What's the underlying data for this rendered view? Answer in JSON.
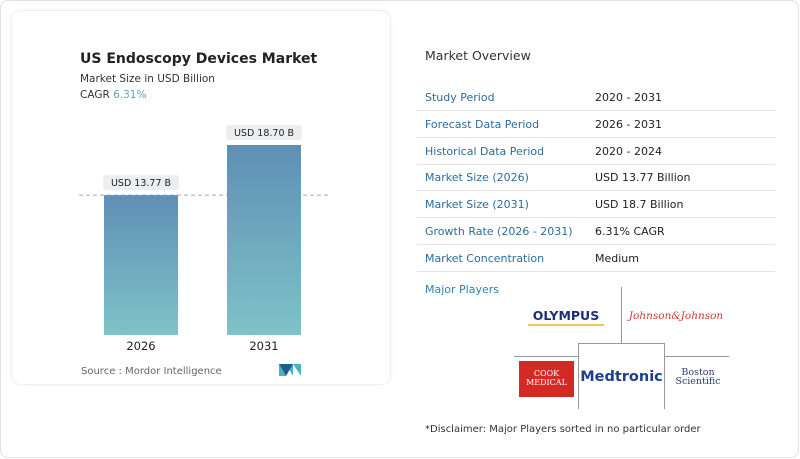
{
  "chart_data": {
    "type": "bar",
    "title": "US Endoscopy Devices Market",
    "subtitle": "Market Size in USD Billion",
    "cagr_label": "CAGR",
    "cagr_value": "6.31%",
    "categories": [
      "2026",
      "2031"
    ],
    "values": [
      13.77,
      18.7
    ],
    "data_labels": [
      "USD 13.77 B",
      "USD 18.70 B"
    ],
    "xlabel": "",
    "ylabel": "",
    "ylim": [
      0,
      18.7
    ],
    "grid": false,
    "reference_line": 13.77,
    "colors": {
      "bar_top": "#5f8fb5",
      "bar_bottom": "#7ec3c8"
    },
    "source": "Source :  Mordor Intelligence"
  },
  "overview": {
    "title": "Market Overview",
    "rows": [
      {
        "label": "Study Period",
        "value": "2020 - 2031"
      },
      {
        "label": "Forecast Data Period",
        "value": "2026 - 2031"
      },
      {
        "label": "Historical Data Period",
        "value": "2020 - 2024"
      },
      {
        "label": "Market Size (2026)",
        "value": "USD 13.77 Billion"
      },
      {
        "label": "Market Size (2031)",
        "value": "USD 18.7 Billion"
      },
      {
        "label": "Growth Rate (2026 - 2031)",
        "value": "6.31% CAGR"
      },
      {
        "label": "Market Concentration",
        "value": "Medium"
      }
    ],
    "major_players_title": "Major Players",
    "players": [
      "OLYMPUS",
      "Johnson&Johnson",
      "COOK MEDICAL",
      "Medtronic",
      "Boston Scientific"
    ],
    "disclaimer": "*Disclaimer: Major Players sorted in no particular order"
  }
}
